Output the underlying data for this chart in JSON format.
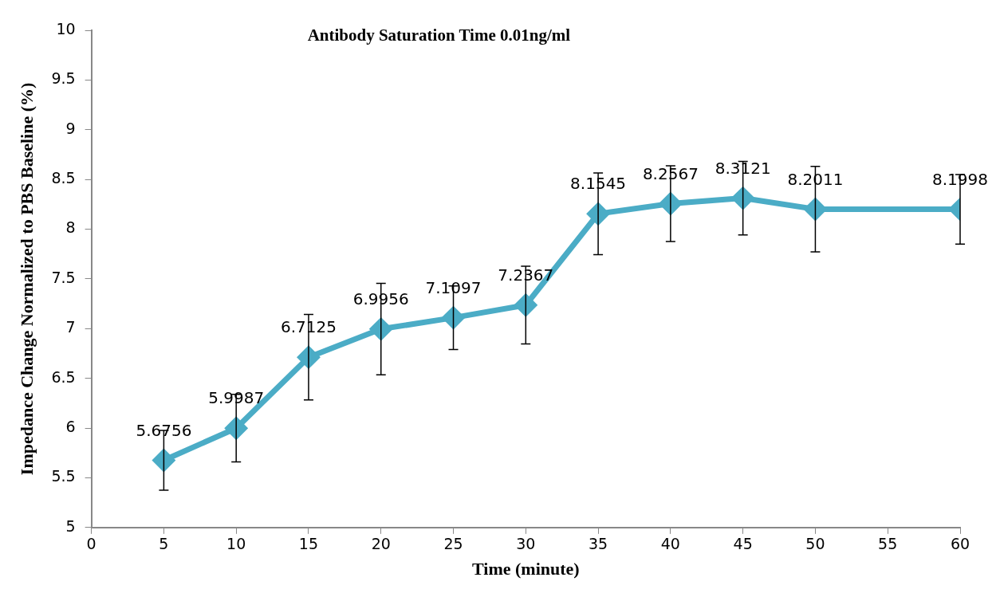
{
  "chart_data": {
    "type": "line",
    "title": "Antibody Saturation Time 0.01ng/ml",
    "xlabel": "Time (minute)",
    "ylabel": "Impedance Change Normalized to PBS Baseline (%)",
    "x": [
      5,
      10,
      15,
      20,
      25,
      30,
      35,
      40,
      45,
      50,
      60
    ],
    "series": [
      {
        "color": "#4bacc6",
        "values": [
          5.6756,
          5.9987,
          6.7125,
          6.9956,
          7.1097,
          7.2367,
          8.1545,
          8.2567,
          8.3121,
          8.2011,
          8.1998
        ],
        "errors": [
          0.3,
          0.34,
          0.43,
          0.46,
          0.32,
          0.39,
          0.41,
          0.38,
          0.37,
          0.43,
          0.35
        ]
      }
    ],
    "xlim": [
      0,
      60
    ],
    "xticks": [
      0,
      5,
      10,
      15,
      20,
      25,
      30,
      35,
      40,
      45,
      50,
      55,
      60
    ],
    "ylim": [
      5,
      10
    ],
    "yticks": [
      5,
      5.5,
      6,
      6.5,
      7,
      7.5,
      8,
      8.5,
      9,
      9.5,
      10
    ],
    "grid": false,
    "legend": false,
    "marker": "diamond",
    "line_style": "solid",
    "data_labels": true
  }
}
